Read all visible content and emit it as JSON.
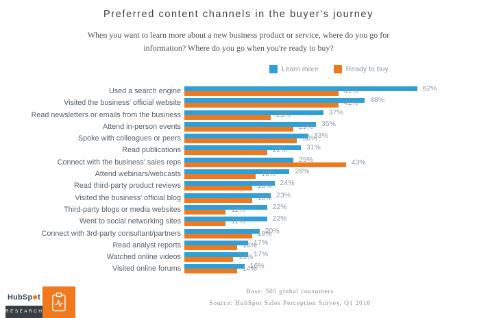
{
  "title": "Preferred content channels in the buyer's journey",
  "subtitle": "When you want to learn more about a new business product or service, where do you go for information? Where do you go when you're ready to buy?",
  "legend": [
    {
      "label": "Learn more",
      "color": "#2E9FD8"
    },
    {
      "label": "Ready to buy",
      "color": "#F0791E"
    }
  ],
  "chart_data": {
    "type": "bar",
    "orientation": "horizontal",
    "title": "Preferred content channels in the buyer's journey",
    "xlim": [
      0,
      65
    ],
    "grid": false,
    "legend_position": "top-right",
    "value_suffix": "%",
    "categories": [
      "Used a search engine",
      "Visited the business' official website",
      "Read newsletters or emails from the business",
      "Attend in-person events",
      "Spoke with colleagues or peers",
      "Read publications",
      "Connect with the business' sales reps",
      "Attend webinars/webcasts",
      "Read third-party product reviews",
      "Visited the business' official blog",
      "Third-party blogs or media websites",
      "Went to social networking sites",
      "Connect with 3rd-party consultant/partners",
      "Read analyst reports",
      "Watched online videos",
      "Visited online forums"
    ],
    "series": [
      {
        "name": "Learn more",
        "color": "#2E9FD8",
        "values": [
          62,
          48,
          37,
          35,
          33,
          31,
          29,
          28,
          24,
          23,
          22,
          22,
          20,
          17,
          17,
          16
        ]
      },
      {
        "name": "Ready to buy",
        "color": "#F0791E",
        "values": [
          41,
          41,
          23,
          29,
          30,
          22,
          43,
          19,
          18,
          18,
          11,
          11,
          18,
          14,
          13,
          14
        ]
      }
    ]
  },
  "footer": {
    "base": "Base: 505 global consumers",
    "source": "Source: HubSpot Sales Perception Survey, Q1 2016"
  },
  "logo": {
    "brand_pre": "HubSp",
    "sprocket_glyph": "✱",
    "brand_post": "t",
    "sub": "RESEARCH"
  }
}
